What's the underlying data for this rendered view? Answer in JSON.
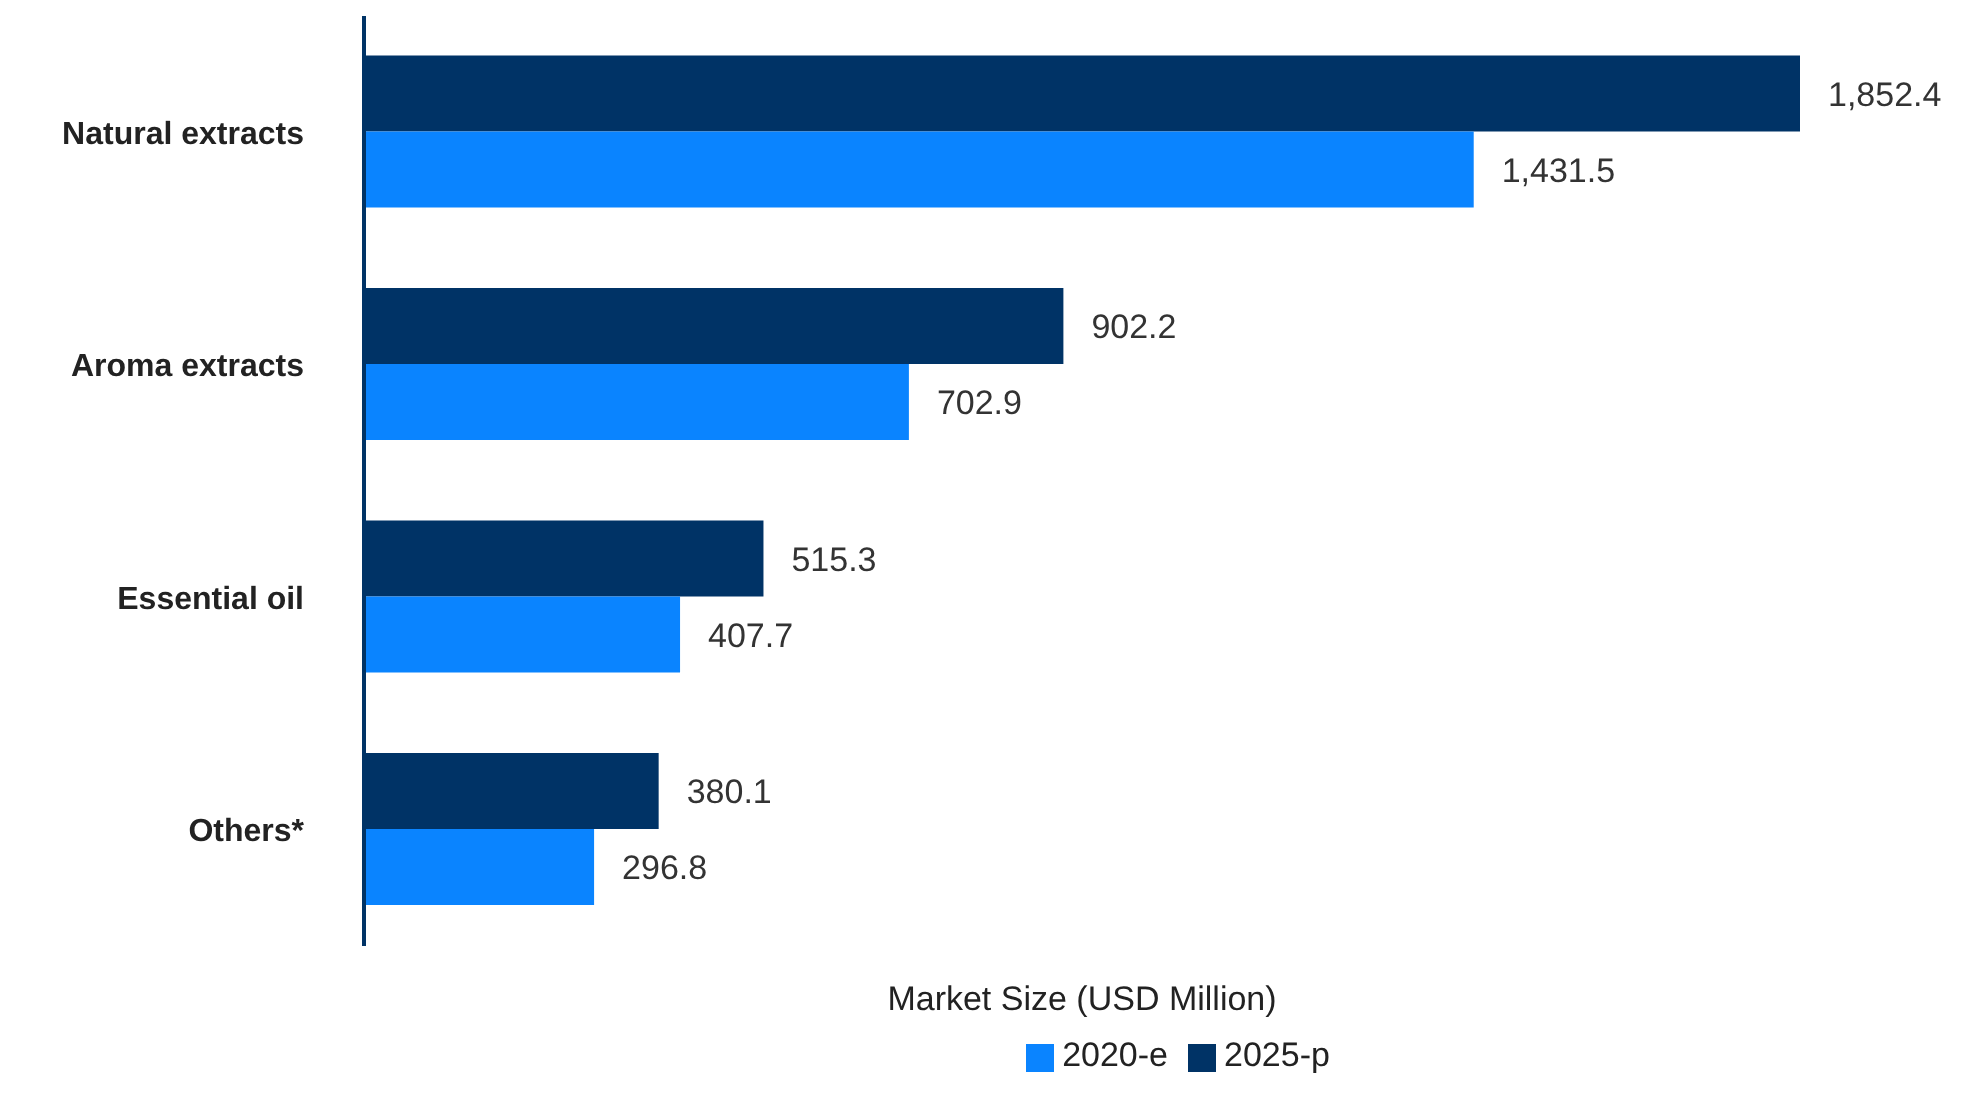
{
  "chart_data": {
    "type": "bar",
    "orientation": "horizontal",
    "xlabel": "Market Size (USD Million)",
    "categories": [
      "Natural extracts",
      "Aroma extracts",
      "Essential oil",
      "Others*"
    ],
    "series": [
      {
        "name": "2025-p",
        "color": "#003366",
        "values": [
          1852.4,
          902.2,
          515.3,
          380.1
        ],
        "value_labels": [
          "1,852.4",
          "902.2",
          "515.3",
          "380.1"
        ]
      },
      {
        "name": "2020-e",
        "color": "#0a84ff",
        "values": [
          1431.5,
          702.9,
          407.7,
          296.8
        ],
        "value_labels": [
          "1,431.5",
          "702.9",
          "407.7",
          "296.8"
        ]
      }
    ],
    "legend": "bottom"
  }
}
